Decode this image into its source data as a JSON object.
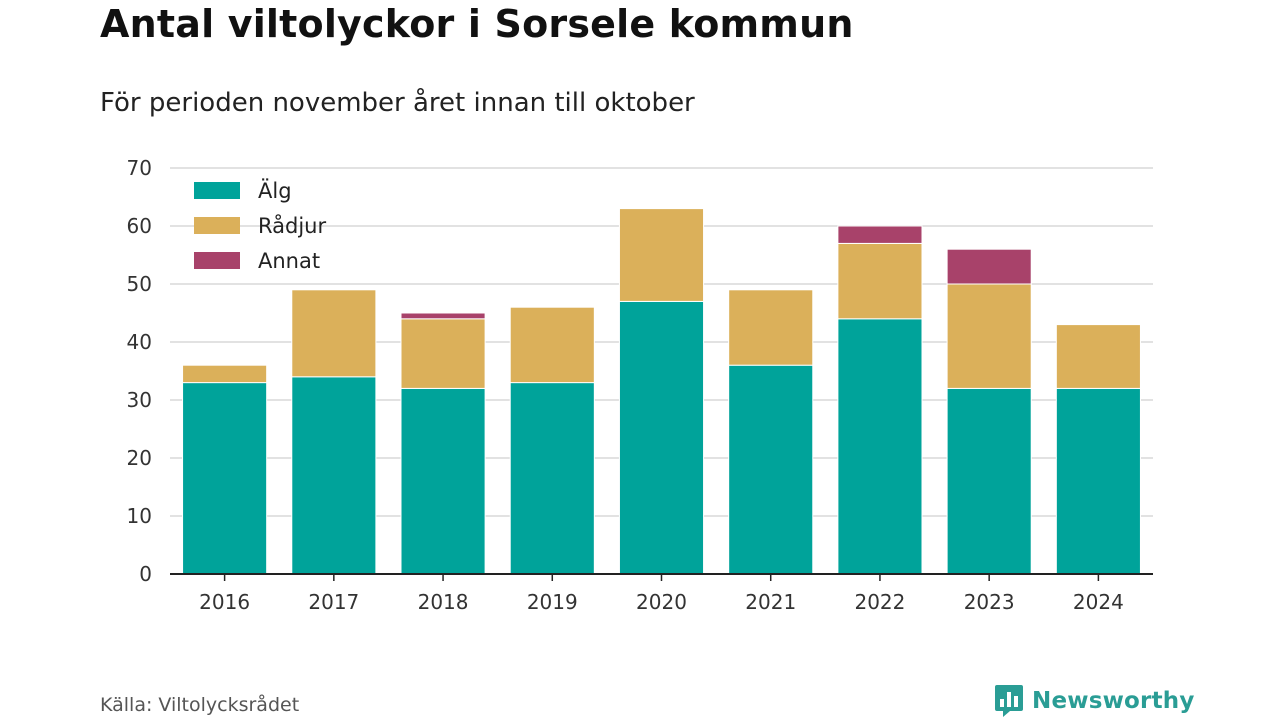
{
  "header": {
    "title": "Antal viltolyckor i Sorsele kommun",
    "subtitle": "För perioden november året innan till oktober"
  },
  "footer": {
    "source": "Källa: Viltolycksrådet",
    "brand": "Newsworthy",
    "brand_icon": "bar-chart-logo-icon"
  },
  "colors": {
    "alg": "#00a39a",
    "radjur": "#dbb05a",
    "annat": "#a8426a",
    "grid": "#d9d9d9",
    "axis": "#222222",
    "brand": "#2a9d95"
  },
  "chart_data": {
    "type": "bar",
    "stacked": true,
    "title": "Antal viltolyckor i Sorsele kommun",
    "subtitle": "För perioden november året innan till oktober",
    "categories": [
      "2016",
      "2017",
      "2018",
      "2019",
      "2020",
      "2021",
      "2022",
      "2023",
      "2024"
    ],
    "series": [
      {
        "name": "Älg",
        "color": "#00a39a",
        "values": [
          33,
          34,
          32,
          33,
          47,
          36,
          44,
          32,
          32
        ]
      },
      {
        "name": "Rådjur",
        "color": "#dbb05a",
        "values": [
          3,
          15,
          12,
          13,
          16,
          13,
          13,
          18,
          11
        ]
      },
      {
        "name": "Annat",
        "color": "#a8426a",
        "values": [
          0,
          0,
          1,
          0,
          0,
          0,
          3,
          6,
          0
        ]
      }
    ],
    "ylim": [
      0,
      70
    ],
    "yticks": [
      "0",
      "10",
      "20",
      "30",
      "40",
      "50",
      "60",
      "70"
    ],
    "grid": true,
    "legend_position": "top-left"
  }
}
